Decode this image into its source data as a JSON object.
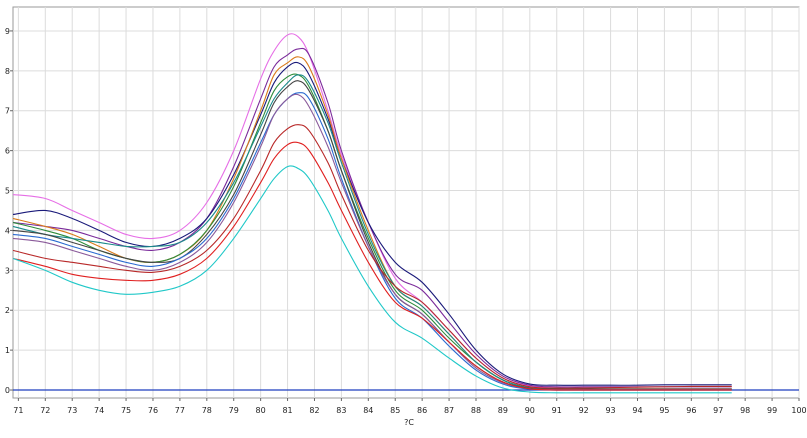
{
  "chart_data": {
    "type": "line",
    "title": "",
    "xlabel": "?C",
    "ylabel": "",
    "xlim": [
      70.8,
      100
    ],
    "ylim": [
      -0.2,
      9.6
    ],
    "grid": true,
    "x_ticks": [
      71,
      72,
      73,
      74,
      75,
      76,
      77,
      78,
      79,
      80,
      81,
      82,
      83,
      84,
      85,
      86,
      87,
      88,
      89,
      90,
      91,
      92,
      93,
      94,
      95,
      96,
      97,
      98,
      99,
      100
    ],
    "y_ticks": [
      0,
      1,
      2,
      3,
      4,
      5,
      6,
      7,
      8,
      9
    ],
    "baseline": {
      "y": 0,
      "color": "#1f3fbf"
    },
    "series": [
      {
        "color": "#e66ee6",
        "x": [
          70.8,
          72,
          73,
          74,
          75,
          76,
          77,
          78,
          79,
          80,
          80.5,
          81,
          81.4,
          81.8,
          82.5,
          83,
          84,
          85,
          86,
          87,
          88,
          89,
          90,
          91,
          92,
          93,
          94,
          95,
          96,
          97,
          97.5
        ],
        "y": [
          4.9,
          4.8,
          4.5,
          4.2,
          3.9,
          3.8,
          4.0,
          4.7,
          6.0,
          7.8,
          8.5,
          8.9,
          8.85,
          8.4,
          7.0,
          5.9,
          4.2,
          2.8,
          2.2,
          1.5,
          0.8,
          0.3,
          0.1,
          0.05,
          0.03,
          0.03,
          0.03,
          0.03,
          0.03,
          0.03,
          0.03
        ]
      },
      {
        "color": "#7a2a9a",
        "x": [
          70.8,
          72,
          73,
          74,
          75,
          76,
          77,
          78,
          79,
          80,
          80.5,
          81,
          81.4,
          81.8,
          82.5,
          83,
          84,
          85,
          86,
          87,
          88,
          89,
          90,
          91,
          92,
          93,
          94,
          95,
          96,
          97,
          97.5
        ],
        "y": [
          4.2,
          4.1,
          4.0,
          3.8,
          3.6,
          3.5,
          3.7,
          4.3,
          5.6,
          7.3,
          8.1,
          8.4,
          8.55,
          8.4,
          7.2,
          6.0,
          4.2,
          2.9,
          2.5,
          1.7,
          0.9,
          0.35,
          0.12,
          0.08,
          0.08,
          0.08,
          0.08,
          0.08,
          0.08,
          0.08,
          0.08
        ]
      },
      {
        "color": "#1a1a7a",
        "x": [
          70.8,
          72,
          73,
          74,
          75,
          76,
          77,
          78,
          79,
          80,
          80.5,
          81,
          81.4,
          81.8,
          82.5,
          83,
          84,
          85,
          86,
          87,
          88,
          89,
          90,
          91,
          92,
          93,
          94,
          95,
          96,
          97,
          97.5
        ],
        "y": [
          4.4,
          4.5,
          4.3,
          4.0,
          3.7,
          3.6,
          3.8,
          4.3,
          5.4,
          6.9,
          7.7,
          8.1,
          8.2,
          7.9,
          6.8,
          5.8,
          4.2,
          3.2,
          2.7,
          1.9,
          1.0,
          0.4,
          0.15,
          0.12,
          0.12,
          0.12,
          0.12,
          0.13,
          0.13,
          0.13,
          0.13
        ]
      },
      {
        "color": "#d97a1a",
        "x": [
          70.8,
          72,
          73,
          74,
          75,
          76,
          77,
          78,
          79,
          80,
          80.5,
          81,
          81.4,
          81.8,
          82.5,
          83,
          84,
          85,
          86,
          87,
          88,
          89,
          90,
          91,
          92,
          93,
          94,
          95,
          96,
          97,
          97.5
        ],
        "y": [
          4.3,
          4.1,
          3.9,
          3.6,
          3.3,
          3.2,
          3.4,
          4.0,
          5.3,
          7.0,
          7.9,
          8.2,
          8.35,
          8.1,
          6.9,
          5.8,
          4.0,
          2.6,
          2.1,
          1.4,
          0.7,
          0.25,
          0.06,
          0.03,
          0.03,
          0.03,
          0.03,
          0.03,
          0.03,
          0.03,
          0.03
        ]
      },
      {
        "color": "#2e8b3a",
        "x": [
          70.8,
          72,
          73,
          74,
          75,
          76,
          77,
          78,
          79,
          80,
          80.5,
          81,
          81.4,
          81.8,
          82.5,
          83,
          84,
          85,
          86,
          87,
          88,
          89,
          90,
          91,
          92,
          93,
          94,
          95,
          96,
          97,
          97.5
        ],
        "y": [
          4.2,
          4.0,
          3.8,
          3.5,
          3.3,
          3.2,
          3.4,
          4.0,
          5.1,
          6.7,
          7.5,
          7.85,
          7.9,
          7.6,
          6.5,
          5.5,
          3.8,
          2.5,
          2.0,
          1.3,
          0.7,
          0.25,
          0.05,
          0.02,
          0.02,
          0.02,
          0.02,
          0.02,
          0.02,
          0.02,
          0.02
        ]
      },
      {
        "color": "#1a8a8a",
        "x": [
          70.8,
          72,
          73,
          74,
          75,
          76,
          77,
          78,
          79,
          80,
          80.5,
          81,
          81.4,
          81.8,
          82.5,
          83,
          84,
          85,
          86,
          87,
          88,
          89,
          90,
          91,
          92,
          93,
          94,
          95,
          96,
          97,
          97.5
        ],
        "y": [
          4.1,
          3.9,
          3.8,
          3.7,
          3.6,
          3.6,
          3.7,
          4.2,
          5.2,
          6.6,
          7.3,
          7.7,
          7.9,
          7.7,
          6.7,
          5.7,
          3.9,
          2.6,
          2.1,
          1.4,
          0.7,
          0.25,
          0.05,
          0.02,
          0.02,
          0.02,
          0.02,
          0.02,
          0.02,
          0.02,
          0.02
        ]
      },
      {
        "color": "#444444",
        "x": [
          70.8,
          72,
          73,
          74,
          75,
          76,
          77,
          78,
          79,
          80,
          80.5,
          81,
          81.4,
          81.8,
          82.5,
          83,
          84,
          85,
          86,
          87,
          88,
          89,
          90,
          91,
          92,
          93,
          94,
          95,
          96,
          97,
          97.5
        ],
        "y": [
          4.0,
          3.9,
          3.7,
          3.5,
          3.3,
          3.2,
          3.3,
          3.9,
          4.9,
          6.4,
          7.2,
          7.6,
          7.75,
          7.5,
          6.5,
          5.5,
          3.7,
          2.4,
          1.9,
          1.2,
          0.6,
          0.2,
          0.04,
          0.02,
          0.02,
          0.02,
          0.02,
          0.02,
          0.02,
          0.02,
          0.02
        ]
      },
      {
        "color": "#2a6ad0",
        "x": [
          70.8,
          72,
          73,
          74,
          75,
          76,
          77,
          78,
          79,
          80,
          80.5,
          81,
          81.4,
          81.8,
          82.5,
          83,
          84,
          85,
          86,
          87,
          88,
          89,
          90,
          91,
          92,
          93,
          94,
          95,
          96,
          97,
          97.5
        ],
        "y": [
          3.9,
          3.8,
          3.6,
          3.4,
          3.2,
          3.1,
          3.3,
          3.8,
          4.8,
          6.2,
          6.9,
          7.3,
          7.45,
          7.3,
          6.3,
          5.3,
          3.6,
          2.3,
          1.8,
          1.1,
          0.5,
          0.15,
          0.02,
          0.0,
          0.0,
          0.0,
          0.0,
          0.0,
          0.0,
          0.0,
          0.0
        ]
      },
      {
        "color": "#8a5a9a",
        "x": [
          70.8,
          72,
          73,
          74,
          75,
          76,
          77,
          78,
          79,
          80,
          80.5,
          81,
          81.4,
          81.8,
          82.5,
          83,
          84,
          85,
          86,
          87,
          88,
          89,
          90,
          91,
          92,
          93,
          94,
          95,
          96,
          97,
          97.5
        ],
        "y": [
          3.8,
          3.7,
          3.5,
          3.3,
          3.1,
          3.0,
          3.2,
          3.7,
          4.7,
          6.1,
          6.9,
          7.3,
          7.4,
          7.1,
          6.1,
          5.2,
          3.6,
          2.4,
          1.9,
          1.2,
          0.55,
          0.18,
          0.03,
          0.01,
          0.01,
          0.01,
          0.01,
          0.01,
          0.01,
          0.01,
          0.01
        ]
      },
      {
        "color": "#b82828",
        "x": [
          70.8,
          72,
          73,
          74,
          75,
          76,
          77,
          78,
          79,
          80,
          80.5,
          81,
          81.4,
          81.8,
          82.5,
          83,
          84,
          85,
          86,
          87,
          88,
          89,
          90,
          91,
          92,
          93,
          94,
          95,
          96,
          97,
          97.5
        ],
        "y": [
          3.5,
          3.3,
          3.2,
          3.1,
          3.0,
          2.95,
          3.1,
          3.5,
          4.3,
          5.5,
          6.2,
          6.55,
          6.65,
          6.5,
          5.7,
          4.9,
          3.5,
          2.6,
          2.2,
          1.5,
          0.8,
          0.3,
          0.08,
          0.05,
          0.05,
          0.06,
          0.07,
          0.08,
          0.09,
          0.09,
          0.09
        ]
      },
      {
        "color": "#e02020",
        "x": [
          70.8,
          72,
          73,
          74,
          75,
          76,
          77,
          78,
          79,
          80,
          80.5,
          81,
          81.4,
          81.8,
          82.5,
          83,
          84,
          85,
          86,
          87,
          88,
          89,
          90,
          91,
          92,
          93,
          94,
          95,
          96,
          97,
          97.5
        ],
        "y": [
          3.3,
          3.1,
          2.9,
          2.8,
          2.75,
          2.75,
          2.9,
          3.3,
          4.1,
          5.2,
          5.8,
          6.15,
          6.2,
          6.0,
          5.2,
          4.5,
          3.2,
          2.2,
          1.8,
          1.2,
          0.6,
          0.2,
          0.03,
          0.0,
          0.0,
          0.0,
          0.0,
          0.0,
          0.0,
          0.0,
          0.0
        ]
      },
      {
        "color": "#20c8c8",
        "x": [
          70.8,
          72,
          73,
          74,
          75,
          76,
          77,
          78,
          79,
          80,
          80.5,
          81,
          81.4,
          81.8,
          82.5,
          83,
          84,
          85,
          86,
          87,
          88,
          89,
          90,
          91,
          92,
          93,
          94,
          95,
          96,
          97,
          97.5
        ],
        "y": [
          3.3,
          3.0,
          2.7,
          2.5,
          2.4,
          2.45,
          2.6,
          3.0,
          3.8,
          4.8,
          5.3,
          5.6,
          5.55,
          5.3,
          4.5,
          3.8,
          2.6,
          1.7,
          1.3,
          0.8,
          0.35,
          0.05,
          -0.05,
          -0.07,
          -0.07,
          -0.07,
          -0.07,
          -0.07,
          -0.07,
          -0.07,
          -0.07
        ]
      }
    ]
  }
}
